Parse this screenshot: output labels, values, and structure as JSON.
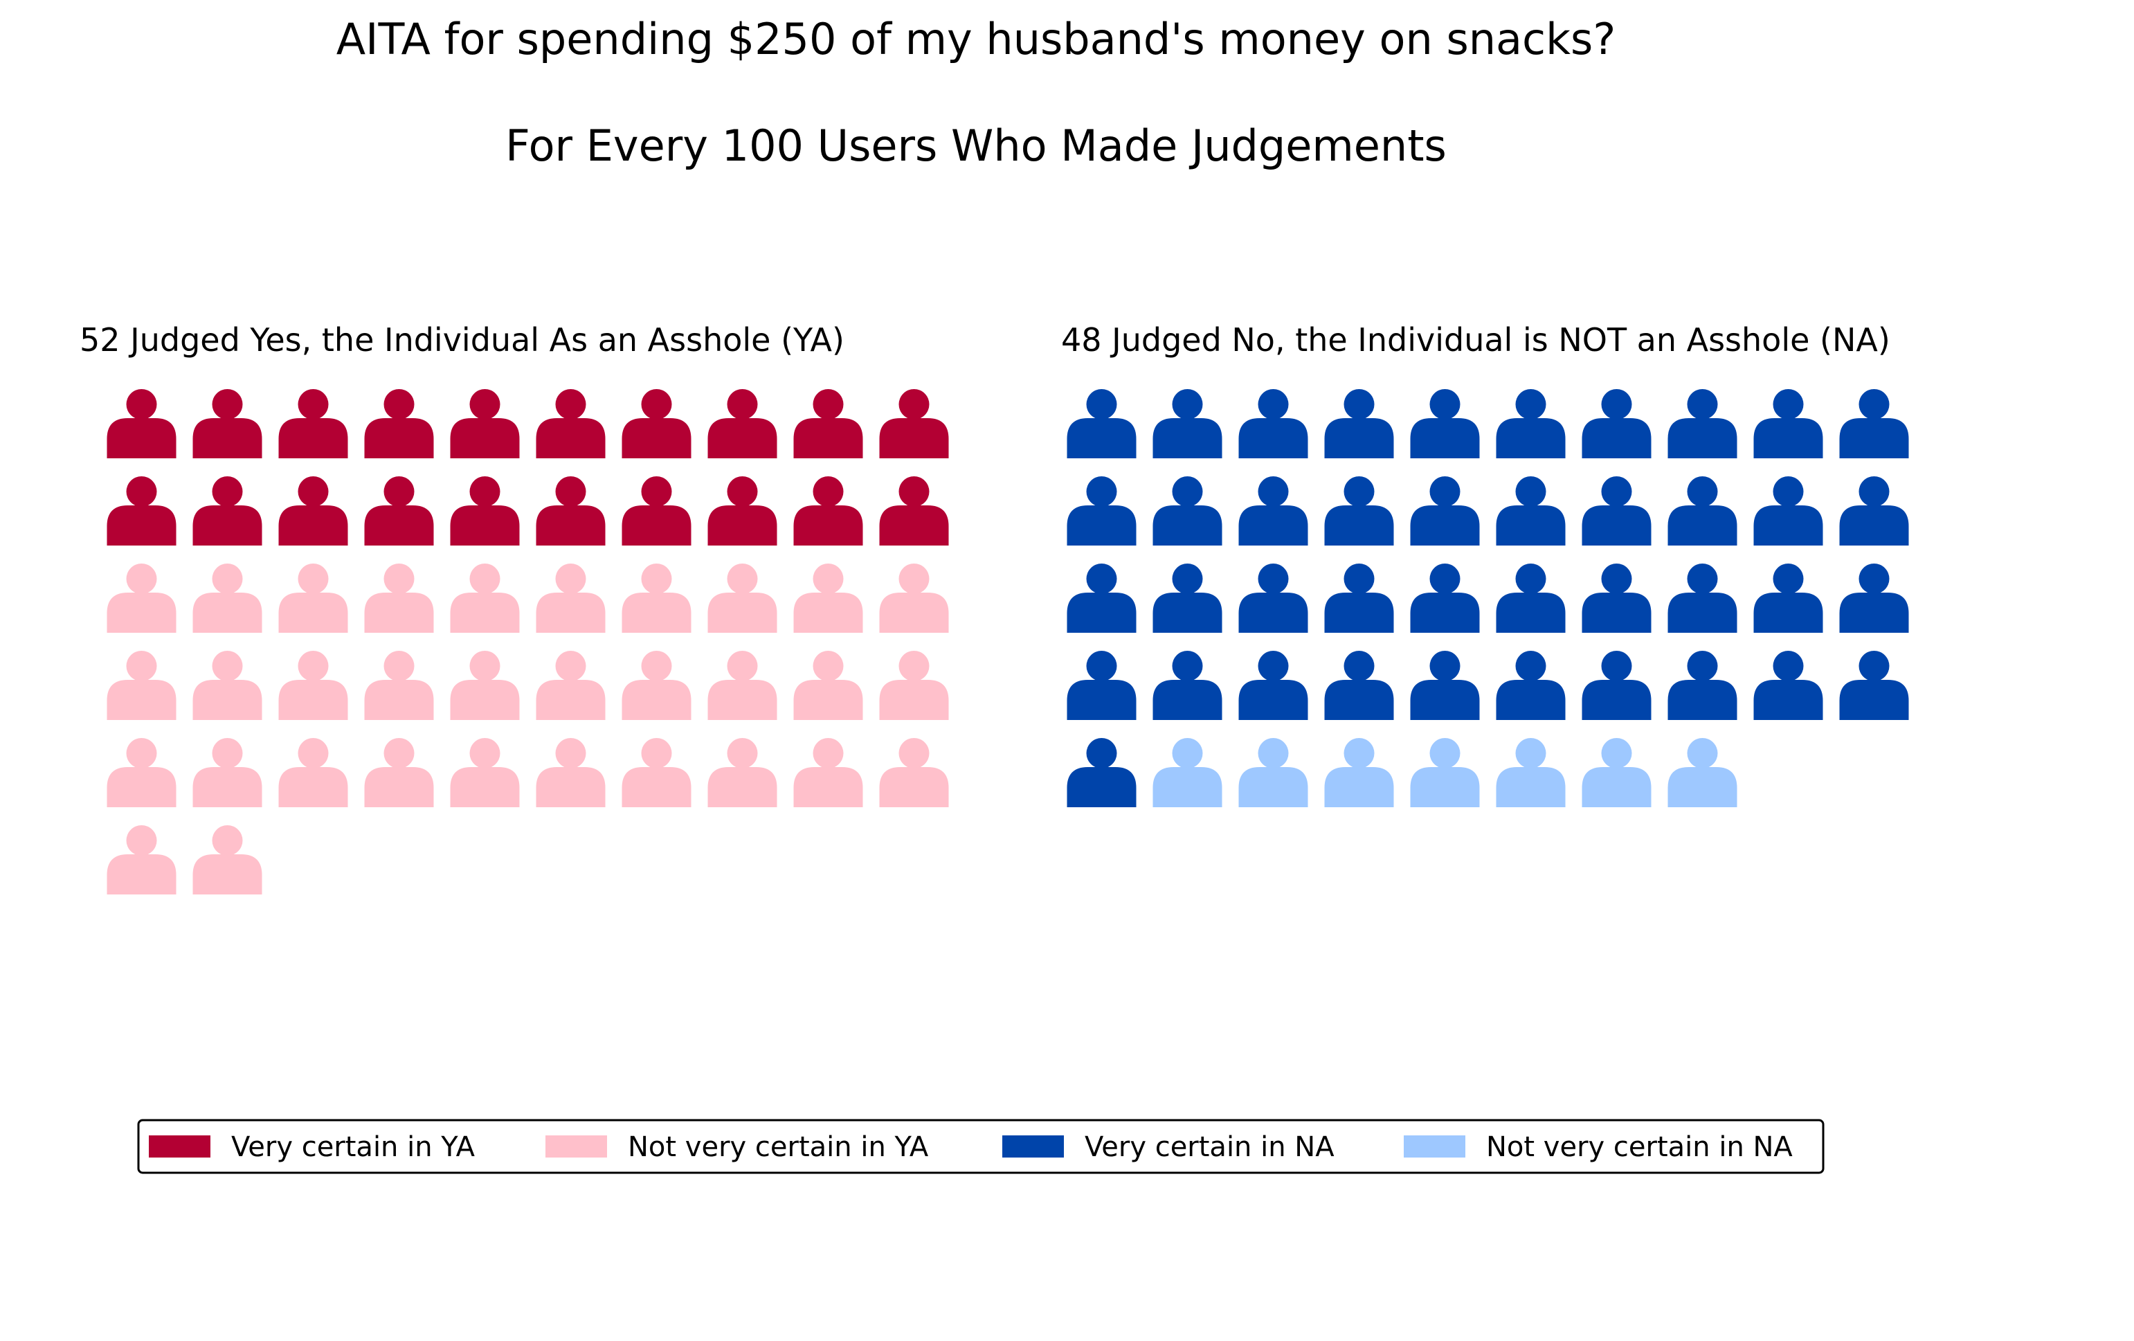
{
  "chart_data": {
    "type": "waffle",
    "title": "AITA for spending $250 of my husband's money on snacks?",
    "subtitle": "For Every 100 Users Who Made Judgements",
    "groups": [
      {
        "title": "52 Judged Yes, the Individual As an Asshole (YA)",
        "total": 52,
        "segments": [
          {
            "label": "Very certain in YA",
            "count": 20,
            "color": "#b30033"
          },
          {
            "label": "Not very certain in YA",
            "count": 32,
            "color": "#ffc0cb"
          }
        ]
      },
      {
        "title": "48 Judged No, the Individual is NOT an Asshole (NA)",
        "total": 48,
        "segments": [
          {
            "label": "Very certain in NA",
            "count": 41,
            "color": "#0044aa"
          },
          {
            "label": "Not very certain in NA",
            "count": 7,
            "color": "#9ec8ff"
          }
        ]
      }
    ],
    "columns": 10,
    "icon": "person-icon",
    "legend": {
      "position": "bottom",
      "items": [
        {
          "label": "Very certain in YA",
          "color": "#b30033"
        },
        {
          "label": "Not very certain in YA",
          "color": "#ffc0cb"
        },
        {
          "label": "Very certain in NA",
          "color": "#0044aa"
        },
        {
          "label": "Not very certain in NA",
          "color": "#9ec8ff"
        }
      ]
    }
  }
}
